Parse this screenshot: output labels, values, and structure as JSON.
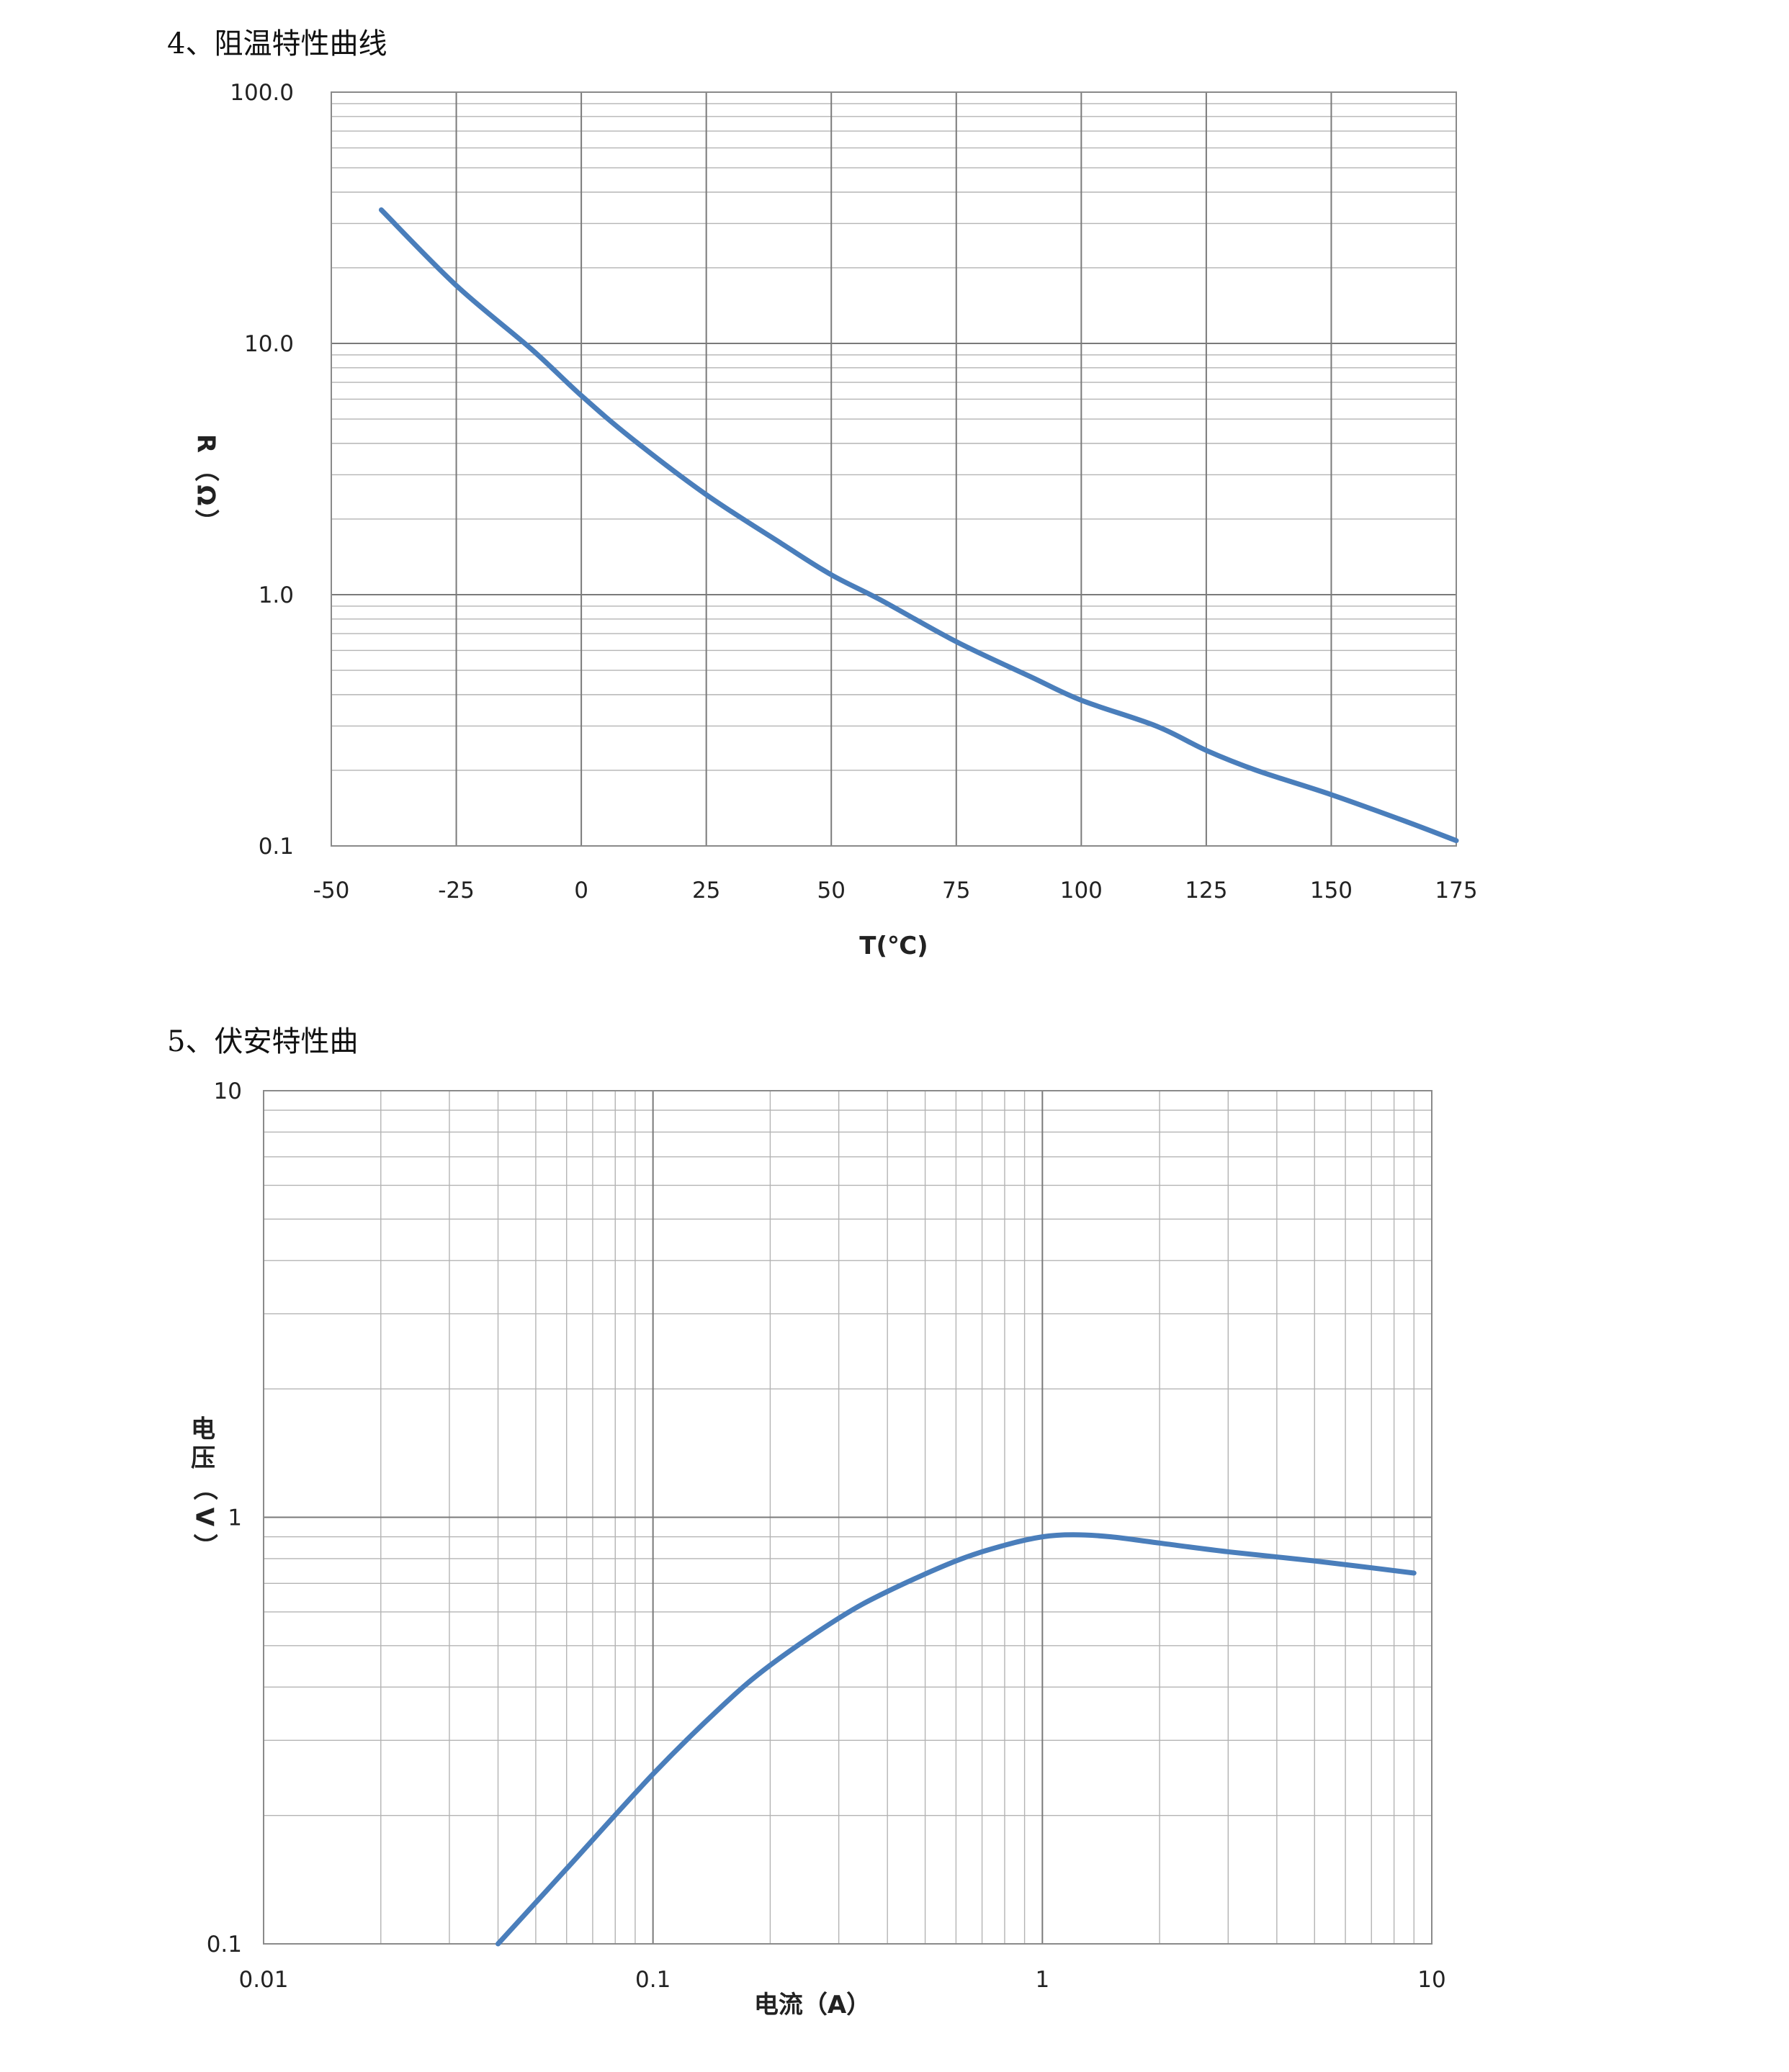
{
  "sections": [
    {
      "title": "4、阻温特性曲线"
    },
    {
      "title": "5、伏安特性曲"
    }
  ],
  "colors": {
    "curve": "#4a7ebb"
  },
  "chart_data": [
    {
      "type": "line",
      "title": "",
      "xlabel": "T(℃)",
      "ylabel_lines": [
        "R",
        "（",
        "Ω",
        "）"
      ],
      "xscale": "linear",
      "yscale": "log",
      "xlim": [
        -50,
        175
      ],
      "ylim": [
        0.1,
        100
      ],
      "x_ticks": [
        "-50",
        "-25",
        "0",
        "25",
        "50",
        "75",
        "100",
        "125",
        "150",
        "175"
      ],
      "x_tick_values": [
        -50,
        -25,
        0,
        25,
        50,
        75,
        100,
        125,
        150,
        175
      ],
      "y_ticks": [
        "0.1",
        "1.0",
        "10.0",
        "100.0"
      ],
      "y_tick_values": [
        0.1,
        1,
        10,
        100
      ],
      "grid": true,
      "series": [
        {
          "x": [
            -40,
            -25,
            -10,
            0,
            10,
            25,
            40,
            50,
            60,
            75,
            90,
            100,
            115,
            125,
            135,
            150,
            165,
            175
          ],
          "y": [
            34,
            17,
            9.5,
            6.2,
            4.2,
            2.5,
            1.6,
            1.2,
            0.95,
            0.65,
            0.47,
            0.38,
            0.3,
            0.24,
            0.2,
            0.16,
            0.125,
            0.105
          ]
        }
      ]
    },
    {
      "type": "line",
      "title": "",
      "xlabel": "电流（A）",
      "ylabel_lines": [
        "电",
        "压",
        "（",
        "V",
        "）"
      ],
      "xscale": "log",
      "yscale": "log",
      "xlim": [
        0.01,
        10
      ],
      "ylim": [
        0.1,
        10
      ],
      "x_ticks": [
        "0.01",
        "0.1",
        "1",
        "10"
      ],
      "x_tick_values": [
        0.01,
        0.1,
        1,
        10
      ],
      "y_ticks": [
        "0.1",
        "1",
        "10"
      ],
      "y_tick_values": [
        0.1,
        1,
        10
      ],
      "grid": true,
      "series": [
        {
          "x": [
            0.04,
            0.06,
            0.1,
            0.15,
            0.2,
            0.3,
            0.4,
            0.6,
            0.8,
            1.0,
            1.2,
            1.5,
            2,
            3,
            5,
            9
          ],
          "y": [
            0.1,
            0.15,
            0.25,
            0.36,
            0.45,
            0.58,
            0.67,
            0.79,
            0.86,
            0.9,
            0.91,
            0.9,
            0.87,
            0.83,
            0.79,
            0.74
          ]
        }
      ]
    }
  ]
}
